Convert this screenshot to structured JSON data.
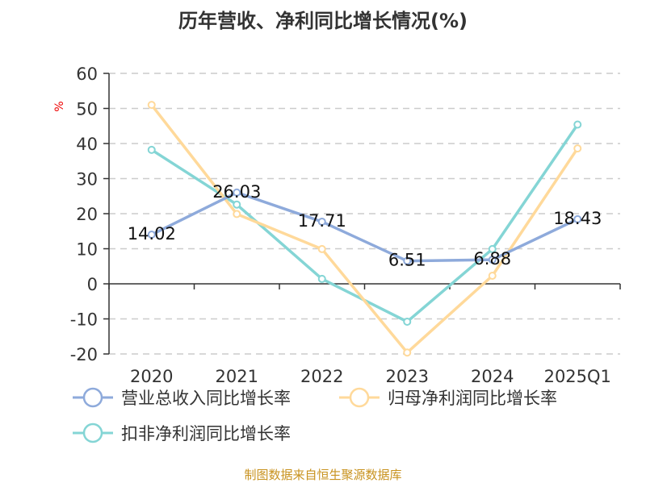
{
  "chart_data": {
    "type": "line",
    "title": "历年营收、净利同比增长情况(%)",
    "ylabel": "%",
    "xlabel": "",
    "categories": [
      "2020",
      "2021",
      "2022",
      "2023",
      "2024",
      "2025Q1"
    ],
    "ylim": [
      -20,
      60
    ],
    "yticks": [
      -20,
      -10,
      0,
      10,
      20,
      30,
      40,
      50,
      60
    ],
    "grid": true,
    "legend_placement": "bottom",
    "series": [
      {
        "name": "营业总收入同比增长率",
        "color": "#8eaadb",
        "values": [
          14.02,
          26.03,
          17.71,
          6.51,
          6.88,
          18.43
        ],
        "show_labels": true
      },
      {
        "name": "归母净利润同比增长率",
        "color": "#ffd99a",
        "values": [
          51.0,
          19.9,
          9.9,
          -19.6,
          2.3,
          38.6
        ],
        "show_labels": false
      },
      {
        "name": "扣非净利润同比增长率",
        "color": "#84d5d5",
        "values": [
          38.2,
          22.6,
          1.4,
          -10.8,
          9.9,
          45.4
        ],
        "show_labels": false
      }
    ]
  },
  "footer": {
    "source": "制图数据来自恒生聚源数据库",
    "color": "#c8921e"
  }
}
